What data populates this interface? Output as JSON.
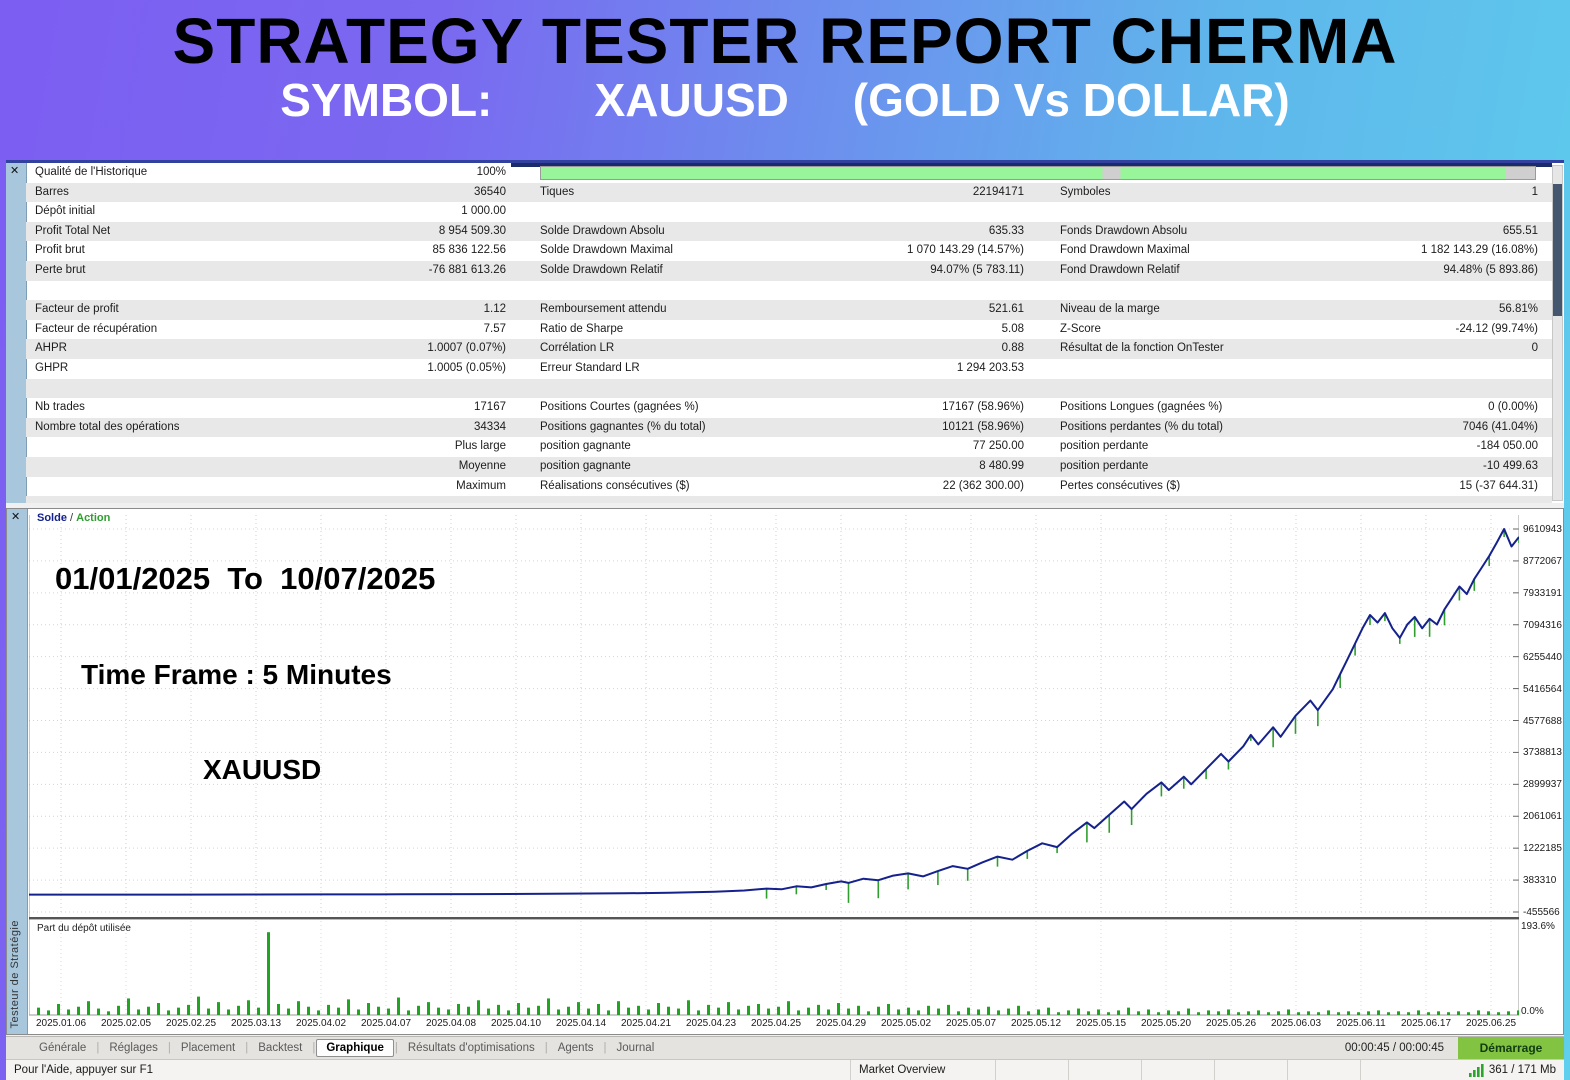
{
  "banner": {
    "title": "STRATEGY TESTER REPORT CHERMA",
    "subtitle": "SYMBOL:        XAUUSD     (GOLD Vs DOLLAR)"
  },
  "stats_table": {
    "rows": [
      {
        "c1l": "Qualité de l'Historique",
        "c1v": "100%",
        "progress": true
      },
      {
        "c1l": "Barres",
        "c1v": "36540",
        "c2l": "Tiques",
        "c2v": "22194171",
        "c3l": "Symboles",
        "c3v": "1"
      },
      {
        "c1l": "Dépôt initial",
        "c1v": "1 000.00"
      },
      {
        "c1l": "Profit Total Net",
        "c1v": "8 954 509.30",
        "c2l": "Solde Drawdown Absolu",
        "c2v": "635.33",
        "c3l": "Fonds Drawdown Absolu",
        "c3v": "655.51"
      },
      {
        "c1l": "Profit brut",
        "c1v": "85 836 122.56",
        "c2l": "Solde Drawdown Maximal",
        "c2v": "1 070 143.29 (14.57%)",
        "c3l": "Fond Drawdown Maximal",
        "c3v": "1 182 143.29 (16.08%)"
      },
      {
        "c1l": "Perte brut",
        "c1v": "-76 881 613.26",
        "c2l": "Solde Drawdown Relatif",
        "c2v": "94.07% (5 783.11)",
        "c3l": "Fond Drawdown Relatif",
        "c3v": "94.48% (5 893.86)"
      },
      {},
      {
        "c1l": "Facteur de profit",
        "c1v": "1.12",
        "c2l": "Remboursement attendu",
        "c2v": "521.61",
        "c3l": "Niveau de la marge",
        "c3v": "56.81%"
      },
      {
        "c1l": "Facteur de récupération",
        "c1v": "7.57",
        "c2l": "Ratio de Sharpe",
        "c2v": "5.08",
        "c3l": "Z-Score",
        "c3v": "-24.12 (99.74%)"
      },
      {
        "c1l": "AHPR",
        "c1v": "1.0007 (0.07%)",
        "c2l": "Corrélation LR",
        "c2v": "0.88",
        "c3l": "Résultat de la fonction OnTester",
        "c3v": "0"
      },
      {
        "c1l": "GHPR",
        "c1v": "1.0005 (0.05%)",
        "c2l": "Erreur Standard LR",
        "c2v": "1 294 203.53"
      },
      {},
      {
        "c1l": "Nb trades",
        "c1v": "17167",
        "c2l": "Positions Courtes (gagnées %)",
        "c2v": "17167 (58.96%)",
        "c3l": "Positions Longues (gagnées %)",
        "c3v": "0 (0.00%)"
      },
      {
        "c1l": "Nombre total des opérations",
        "c1v": "34334",
        "c2l": "Positions gagnantes (% du total)",
        "c2v": "10121 (58.96%)",
        "c3l": "Positions perdantes (% du total)",
        "c3v": "7046 (41.04%)"
      },
      {
        "c1v": "Plus large",
        "c2l": "position gagnante",
        "c2v": "77 250.00",
        "c3l": "position perdante",
        "c3v": "-184 050.00"
      },
      {
        "c1v": "Moyenne",
        "c2l": "position gagnante",
        "c2v": "8 480.99",
        "c3l": "position perdante",
        "c3v": "-10 499.63"
      },
      {
        "c1v": "Maximum",
        "c2l": "Réalisations consécutives ($)",
        "c2v": "22 (362 300.00)",
        "c3l": "Pertes consécutives ($)",
        "c3v": "15 (-37 644.31)"
      },
      {}
    ]
  },
  "chart": {
    "legend": {
      "balance": "Solde",
      "sep": " / ",
      "equity": "Action"
    },
    "overlay": {
      "period": "01/01/2025  To  10/07/2025",
      "timeframe": "Time Frame : 5 Minutes",
      "symbol": "XAUUSD"
    },
    "y_labels": [
      "9610943",
      "8772067",
      "7933191",
      "7094316",
      "6255440",
      "5416564",
      "4577688",
      "3738813",
      "2899937",
      "2061061",
      "1222185",
      "383310",
      "-455566"
    ],
    "x_labels": [
      "2025.01.06",
      "2025.02.05",
      "2025.02.25",
      "2025.03.13",
      "2025.04.02",
      "2025.04.07",
      "2025.04.08",
      "2025.04.10",
      "2025.04.14",
      "2025.04.21",
      "2025.04.23",
      "2025.04.25",
      "2025.04.29",
      "2025.05.02",
      "2025.05.07",
      "2025.05.12",
      "2025.05.15",
      "2025.05.20",
      "2025.05.26",
      "2025.06.03",
      "2025.06.11",
      "2025.06.17",
      "2025.06.25"
    ],
    "balance_color": "#15218d",
    "equity_color": "#2f9e2f",
    "equity_points": [
      [
        0.0,
        1000
      ],
      [
        0.05,
        1500
      ],
      [
        0.1,
        2500
      ],
      [
        0.15,
        4000
      ],
      [
        0.2,
        6000
      ],
      [
        0.25,
        9000
      ],
      [
        0.3,
        14000
      ],
      [
        0.35,
        22000
      ],
      [
        0.4,
        35000
      ],
      [
        0.43,
        50000
      ],
      [
        0.46,
        75000
      ],
      [
        0.48,
        110000
      ],
      [
        0.495,
        160000
      ],
      [
        0.505,
        140000
      ],
      [
        0.515,
        220000
      ],
      [
        0.525,
        190000
      ],
      [
        0.535,
        280000
      ],
      [
        0.545,
        350000
      ],
      [
        0.55,
        310000
      ],
      [
        0.56,
        420000
      ],
      [
        0.57,
        380000
      ],
      [
        0.58,
        500000
      ],
      [
        0.59,
        560000
      ],
      [
        0.6,
        480000
      ],
      [
        0.61,
        620000
      ],
      [
        0.62,
        750000
      ],
      [
        0.63,
        680000
      ],
      [
        0.64,
        850000
      ],
      [
        0.65,
        1000000
      ],
      [
        0.66,
        920000
      ],
      [
        0.67,
        1150000
      ],
      [
        0.68,
        1350000
      ],
      [
        0.69,
        1250000
      ],
      [
        0.7,
        1600000
      ],
      [
        0.71,
        1900000
      ],
      [
        0.715,
        1750000
      ],
      [
        0.725,
        2100000
      ],
      [
        0.735,
        2450000
      ],
      [
        0.74,
        2250000
      ],
      [
        0.75,
        2650000
      ],
      [
        0.76,
        2950000
      ],
      [
        0.765,
        2750000
      ],
      [
        0.775,
        3100000
      ],
      [
        0.78,
        2900000
      ],
      [
        0.79,
        3300000
      ],
      [
        0.8,
        3700000
      ],
      [
        0.805,
        3500000
      ],
      [
        0.815,
        3900000
      ],
      [
        0.82,
        4200000
      ],
      [
        0.825,
        3950000
      ],
      [
        0.835,
        4400000
      ],
      [
        0.84,
        4150000
      ],
      [
        0.85,
        4700000
      ],
      [
        0.86,
        5100000
      ],
      [
        0.865,
        4850000
      ],
      [
        0.875,
        5400000
      ],
      [
        0.88,
        5800000
      ],
      [
        0.885,
        6200000
      ],
      [
        0.89,
        6600000
      ],
      [
        0.895,
        7000000
      ],
      [
        0.9,
        7350000
      ],
      [
        0.905,
        7150000
      ],
      [
        0.91,
        7400000
      ],
      [
        0.915,
        7000000
      ],
      [
        0.92,
        6750000
      ],
      [
        0.925,
        7100000
      ],
      [
        0.93,
        7300000
      ],
      [
        0.935,
        7000000
      ],
      [
        0.94,
        7250000
      ],
      [
        0.945,
        7100000
      ],
      [
        0.95,
        7500000
      ],
      [
        0.955,
        7800000
      ],
      [
        0.96,
        8100000
      ],
      [
        0.965,
        7900000
      ],
      [
        0.97,
        8300000
      ],
      [
        0.975,
        8600000
      ],
      [
        0.98,
        8900000
      ],
      [
        0.985,
        9250000
      ],
      [
        0.99,
        9610943
      ],
      [
        0.995,
        9150000
      ],
      [
        1.0,
        9400000
      ]
    ],
    "usage": {
      "label": "Part du dépôt utilisée",
      "max_label": "193.6%",
      "min_label": "0.0%",
      "bar_color": "#1fa51f",
      "bars": [
        8,
        5,
        12,
        6,
        9,
        15,
        7,
        4,
        10,
        18,
        6,
        9,
        13,
        5,
        8,
        11,
        20,
        7,
        14,
        6,
        10,
        16,
        8,
        90,
        12,
        7,
        15,
        9,
        5,
        11,
        8,
        17,
        6,
        13,
        9,
        7,
        19,
        5,
        10,
        14,
        8,
        6,
        12,
        9,
        16,
        7,
        11,
        5,
        13,
        8,
        10,
        18,
        6,
        9,
        14,
        7,
        12,
        5,
        15,
        8,
        10,
        6,
        13,
        9,
        7,
        16,
        5,
        11,
        8,
        14,
        6,
        10,
        12,
        7,
        9,
        15,
        5,
        8,
        11,
        6,
        13,
        7,
        10,
        4,
        9,
        12,
        6,
        8,
        5,
        10,
        7,
        11,
        4,
        8,
        6,
        9,
        5,
        7,
        10,
        4,
        6,
        8,
        3,
        5,
        7,
        4,
        6,
        3,
        5,
        8,
        4,
        6,
        3,
        5,
        4,
        7,
        3,
        5,
        4,
        6,
        3,
        4,
        5,
        3,
        4,
        6,
        3,
        4,
        3,
        5,
        3,
        4,
        3,
        4,
        5,
        3,
        4,
        3,
        5,
        3,
        4,
        3,
        4,
        3,
        5,
        4,
        3,
        4,
        5
      ]
    }
  },
  "tabs": {
    "items": [
      "Générale",
      "Réglages",
      "Placement",
      "Backtest",
      "Graphique",
      "Résultats d'optimisations",
      "Agents",
      "Journal"
    ],
    "active": "Graphique",
    "time": "00:00:45 / 00:00:45",
    "start_button": "Démarrage"
  },
  "status_bar": {
    "help": "Pour l'Aide, appuyer sur F1",
    "market": "Market Overview",
    "memory": "361 / 171 Mb"
  },
  "panels": {
    "tester_vertical_label": "Testeur de Stratégie",
    "close_glyph": "✕"
  }
}
